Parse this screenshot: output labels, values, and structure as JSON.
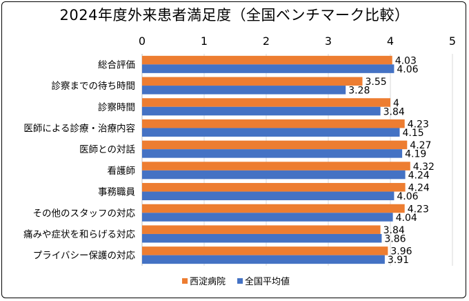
{
  "chart_data": {
    "type": "bar",
    "orientation": "horizontal",
    "title": "2024年度外来患者満足度（全国ベンチマーク比較）",
    "categories": [
      "総合評価",
      "診察までの待ち時間",
      "診察時間",
      "医師による診療・治療内容",
      "医師との対話",
      "看護師",
      "事務職員",
      "その他のスタッフの対応",
      "痛みや症状を和らげる対応",
      "プライバシー保護の対応"
    ],
    "series": [
      {
        "name": "西淀病院",
        "color": "#ED7D31",
        "values": [
          4.03,
          3.55,
          4,
          4.23,
          4.27,
          4.32,
          4.24,
          4.23,
          3.84,
          3.96
        ],
        "labels": [
          "4.03",
          "3.55",
          "4",
          "4.23",
          "4.27",
          "4.32",
          "4.24",
          "4.23",
          "3.84",
          "3.96"
        ]
      },
      {
        "name": "全国平均値",
        "color": "#4472C4",
        "values": [
          4.06,
          3.28,
          3.84,
          4.15,
          4.19,
          4.24,
          4.06,
          4.04,
          3.86,
          3.91
        ],
        "labels": [
          "4.06",
          "3.28",
          "3.84",
          "4.15",
          "4.19",
          "4.24",
          "4.06",
          "4.04",
          "3.86",
          "3.91"
        ]
      }
    ],
    "xlim": [
      0,
      5
    ],
    "xticks": [
      "0",
      "1",
      "2",
      "3",
      "4",
      "5"
    ],
    "grid": true,
    "axis_position": "top",
    "legend_position": "bottom"
  }
}
